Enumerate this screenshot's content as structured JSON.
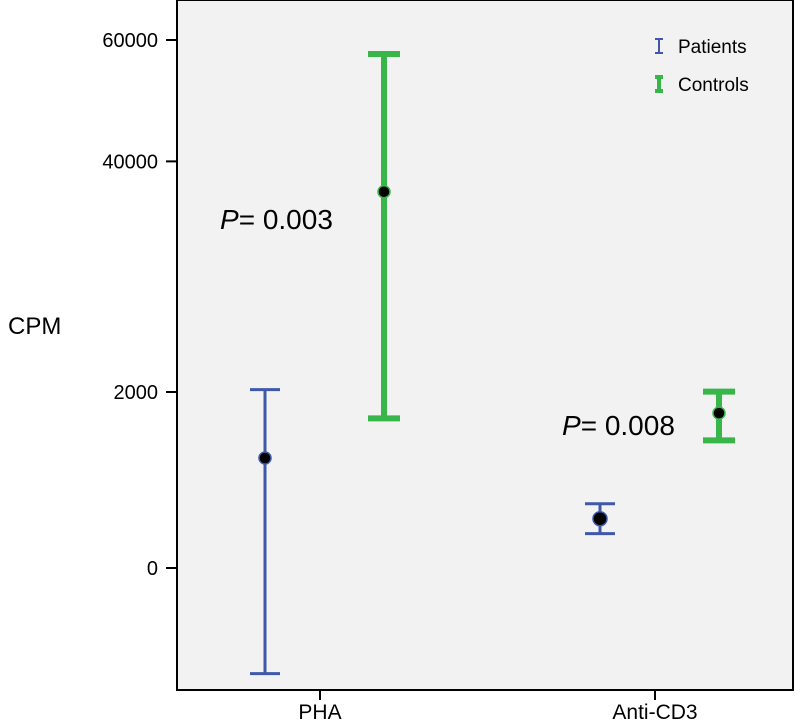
{
  "chart_data": {
    "type": "scatter",
    "subtype": "error-bar",
    "ylabel": "CPM",
    "y_axis_scale": "broken: lower segment 0-2000, upper segment 2000-60000",
    "y_ticks": [
      "0",
      "2000",
      "40000",
      "60000"
    ],
    "categories": [
      "PHA",
      "Anti-CD3"
    ],
    "background": "#f2f2f2",
    "legend_position": "top-right",
    "series": [
      {
        "name": "Patients",
        "color": "#4058a8",
        "points": [
          {
            "category": "PHA",
            "mean": 1250,
            "low": -1200,
            "high": 2400
          },
          {
            "category": "Anti-CD3",
            "mean": 560,
            "low": 390,
            "high": 730
          }
        ]
      },
      {
        "name": "Controls",
        "color": "#38b64a",
        "points": [
          {
            "category": "PHA",
            "mean": 35000,
            "low": 1700,
            "high": 57700
          },
          {
            "category": "Anti-CD3",
            "mean": 1760,
            "low": 1450,
            "high": 2060
          }
        ]
      }
    ],
    "annotations": [
      {
        "category": "PHA",
        "italic": "P",
        "text": "= 0.003"
      },
      {
        "category": "Anti-CD3",
        "italic": "P",
        "text": "= 0.008"
      }
    ]
  }
}
